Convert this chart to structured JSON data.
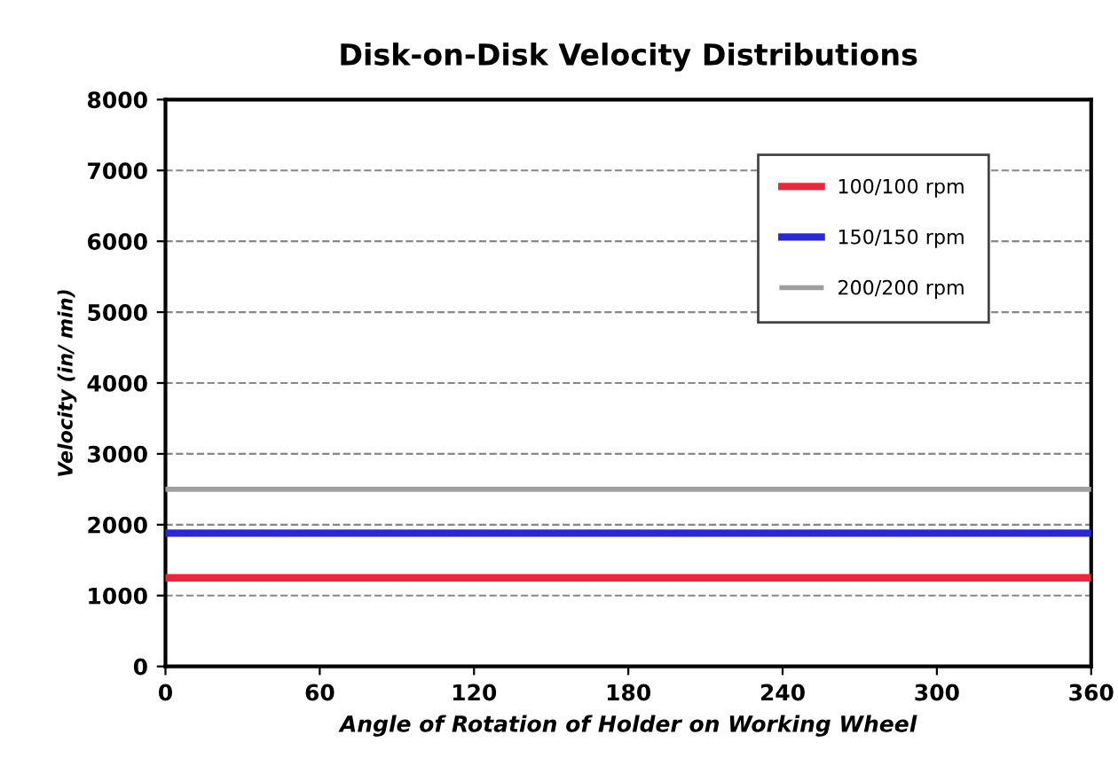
{
  "chart_data": {
    "type": "line",
    "title": "Disk-on-Disk Velocity Distributions",
    "xlabel": "Angle of Rotation of Holder on Working Wheel",
    "ylabel": "Velocity (in/ min)",
    "x": [
      0,
      360
    ],
    "series": [
      {
        "name": "100/100 rpm",
        "color": "#e8283c",
        "values": [
          1250,
          1250
        ]
      },
      {
        "name": "150/150 rpm",
        "color": "#2a2ad0",
        "values": [
          1880,
          1880
        ]
      },
      {
        "name": "200/200 rpm",
        "color": "#a0a0a0",
        "values": [
          2500,
          2500
        ]
      }
    ],
    "xlim": [
      0,
      360
    ],
    "xticks": [
      0,
      60,
      120,
      180,
      240,
      300,
      360
    ],
    "ylim": [
      0,
      8000
    ],
    "yticks": [
      0,
      1000,
      2000,
      3000,
      4000,
      5000,
      6000,
      7000,
      8000
    ],
    "grid": "y",
    "legend": "top right",
    "marker": "none",
    "line_style": "solid"
  }
}
